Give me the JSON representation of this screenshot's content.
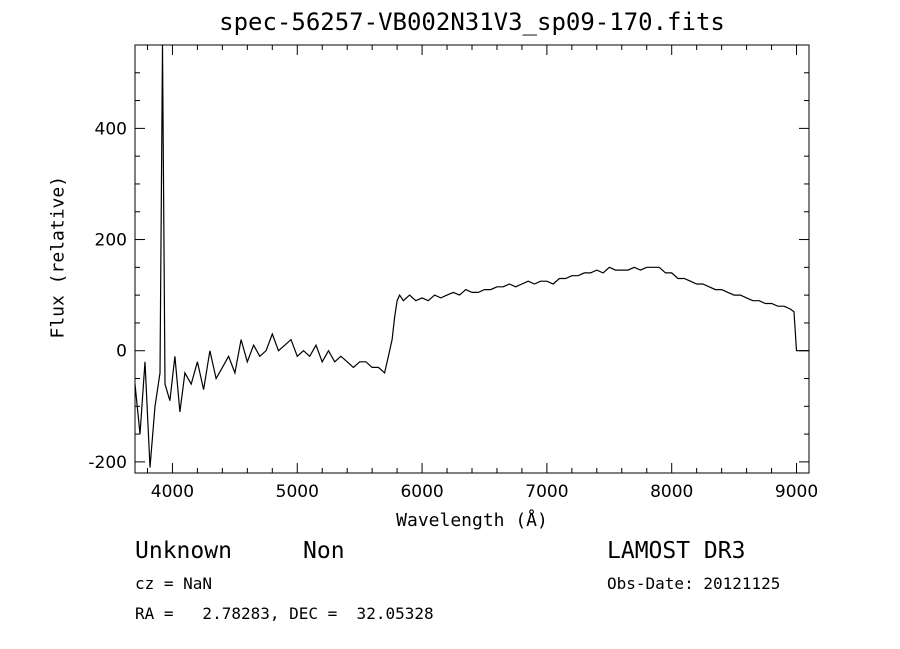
{
  "chart_data": {
    "type": "line",
    "title": "spec-56257-VB002N31V3_sp09-170.fits",
    "xlabel": "Wavelength (Å)",
    "ylabel": "Flux (relative)",
    "xlim": [
      3700,
      9100
    ],
    "ylim": [
      -220,
      550
    ],
    "xticks": [
      4000,
      5000,
      6000,
      7000,
      8000,
      9000
    ],
    "yticks": [
      -200,
      0,
      200,
      400
    ],
    "grid": false,
    "series": [
      {
        "x": [
          3700,
          3740,
          3780,
          3820,
          3860,
          3900,
          3920,
          3940,
          3980,
          4020,
          4060,
          4100,
          4150,
          4200,
          4250,
          4300,
          4350,
          4400,
          4450,
          4500,
          4550,
          4600,
          4650,
          4700,
          4750,
          4800,
          4850,
          4900,
          4950,
          5000,
          5050,
          5100,
          5150,
          5200,
          5250,
          5300,
          5350,
          5400,
          5450,
          5500,
          5550,
          5600,
          5650,
          5700,
          5730,
          5760,
          5780,
          5800,
          5820,
          5850,
          5900,
          5950,
          6000,
          6050,
          6100,
          6150,
          6200,
          6250,
          6300,
          6350,
          6400,
          6450,
          6500,
          6550,
          6600,
          6650,
          6700,
          6750,
          6800,
          6850,
          6900,
          6950,
          7000,
          7050,
          7100,
          7150,
          7200,
          7250,
          7300,
          7350,
          7400,
          7450,
          7500,
          7550,
          7600,
          7650,
          7700,
          7750,
          7800,
          7850,
          7900,
          7950,
          8000,
          8050,
          8100,
          8150,
          8200,
          8250,
          8300,
          8350,
          8400,
          8450,
          8500,
          8550,
          8600,
          8650,
          8700,
          8750,
          8800,
          8850,
          8900,
          8950,
          8980,
          9000
        ],
        "y": [
          -60,
          -150,
          -20,
          -210,
          -100,
          -40,
          550,
          -60,
          -90,
          -10,
          -110,
          -40,
          -60,
          -20,
          -70,
          0,
          -50,
          -30,
          -10,
          -40,
          20,
          -20,
          10,
          -10,
          0,
          30,
          0,
          10,
          20,
          -10,
          0,
          -10,
          10,
          -20,
          0,
          -20,
          -10,
          -20,
          -30,
          -20,
          -20,
          -30,
          -30,
          -40,
          -10,
          20,
          60,
          90,
          100,
          90,
          100,
          90,
          95,
          90,
          100,
          95,
          100,
          105,
          100,
          110,
          105,
          105,
          110,
          110,
          115,
          115,
          120,
          115,
          120,
          125,
          120,
          125,
          125,
          120,
          130,
          130,
          135,
          135,
          140,
          140,
          145,
          140,
          150,
          145,
          145,
          145,
          150,
          145,
          150,
          150,
          150,
          140,
          140,
          130,
          130,
          125,
          120,
          120,
          115,
          110,
          110,
          105,
          100,
          100,
          95,
          90,
          90,
          85,
          85,
          80,
          80,
          75,
          70,
          0
        ]
      }
    ]
  },
  "footer": {
    "object_class": "Unknown",
    "object_subclass": "Non",
    "survey": "LAMOST DR3",
    "cz": "cz = NaN",
    "obs_date": "Obs-Date: 20121125",
    "coords": "RA =   2.78283, DEC =  32.05328"
  }
}
